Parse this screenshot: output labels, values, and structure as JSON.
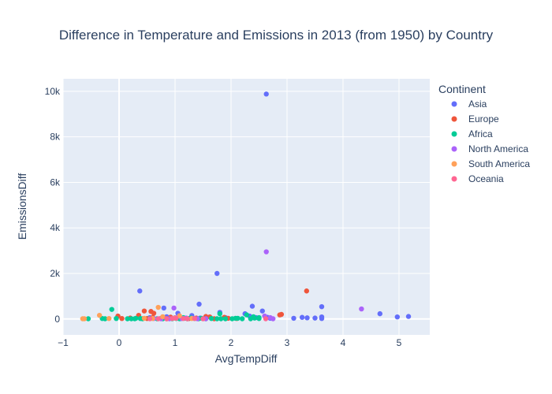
{
  "chart_data": {
    "type": "scatter",
    "title": "Difference in Temperature and Emissions in 2013 (from 1950) by Country",
    "xlabel": "AvgTempDiff",
    "ylabel": "EmissionsDiff",
    "xlim": [
      -1,
      5.55
    ],
    "ylim": [
      -700,
      10550
    ],
    "x_ticks": [
      -1,
      0,
      1,
      2,
      3,
      4,
      5
    ],
    "x_tick_labels": [
      "−1",
      "0",
      "1",
      "2",
      "3",
      "4",
      "5"
    ],
    "y_ticks": [
      0,
      2000,
      4000,
      6000,
      8000,
      10000
    ],
    "y_tick_labels": [
      "0",
      "2k",
      "4k",
      "6k",
      "8k",
      "10k"
    ],
    "grid": true,
    "legend_title": "Continent",
    "legend_position": "right",
    "series": [
      {
        "name": "Asia",
        "color": "#636efa",
        "points": [
          [
            2.63,
            9880
          ],
          [
            1.75,
            2000
          ],
          [
            0.37,
            1230
          ],
          [
            1.43,
            650
          ],
          [
            2.38,
            560
          ],
          [
            3.62,
            540
          ],
          [
            0.8,
            480
          ],
          [
            2.56,
            350
          ],
          [
            1.8,
            290
          ],
          [
            2.25,
            230
          ],
          [
            4.66,
            230
          ],
          [
            1.05,
            250
          ],
          [
            5.17,
            110
          ],
          [
            4.97,
            90
          ],
          [
            3.27,
            70
          ],
          [
            3.36,
            50
          ],
          [
            3.5,
            40
          ],
          [
            3.12,
            30
          ],
          [
            3.62,
            20
          ],
          [
            3.62,
            90
          ],
          [
            2.45,
            60
          ],
          [
            2.33,
            130
          ],
          [
            1.3,
            150
          ],
          [
            1.9,
            60
          ],
          [
            0.85,
            100
          ],
          [
            2.65,
            70
          ],
          [
            2.7,
            30
          ],
          [
            1.45,
            40
          ],
          [
            0.55,
            60
          ],
          [
            1.1,
            20
          ]
        ]
      },
      {
        "name": "Europe",
        "color": "#ef553b",
        "points": [
          [
            3.35,
            1230
          ],
          [
            0.45,
            350
          ],
          [
            0.57,
            330
          ],
          [
            0.62,
            250
          ],
          [
            2.9,
            200
          ],
          [
            2.87,
            180
          ],
          [
            0.35,
            160
          ],
          [
            -0.02,
            130
          ],
          [
            1.55,
            110
          ],
          [
            1.62,
            90
          ],
          [
            0.92,
            80
          ],
          [
            1.88,
            70
          ],
          [
            0.6,
            60
          ],
          [
            1.1,
            50
          ],
          [
            0.2,
            40
          ],
          [
            1.38,
            40
          ],
          [
            0.75,
            30
          ],
          [
            1.95,
            30
          ],
          [
            0.5,
            20
          ],
          [
            0.05,
            20
          ],
          [
            2.1,
            20
          ],
          [
            1.25,
            20
          ],
          [
            0.85,
            10
          ],
          [
            1.7,
            10
          ]
        ]
      },
      {
        "name": "Africa",
        "color": "#00cc96",
        "points": [
          [
            -0.13,
            420
          ],
          [
            2.28,
            180
          ],
          [
            1.8,
            230
          ],
          [
            2.4,
            100
          ],
          [
            2.5,
            60
          ],
          [
            2.08,
            30
          ],
          [
            -0.55,
            10
          ],
          [
            -0.25,
            10
          ],
          [
            -0.3,
            20
          ],
          [
            -0.05,
            20
          ],
          [
            0.15,
            10
          ],
          [
            0.22,
            10
          ],
          [
            0.3,
            30
          ],
          [
            0.38,
            20
          ],
          [
            0.42,
            10
          ],
          [
            0.55,
            20
          ],
          [
            0.68,
            10
          ],
          [
            0.78,
            10
          ],
          [
            0.95,
            10
          ],
          [
            1.02,
            20
          ],
          [
            1.08,
            10
          ],
          [
            1.18,
            30
          ],
          [
            1.22,
            10
          ],
          [
            1.35,
            20
          ],
          [
            1.42,
            10
          ],
          [
            1.55,
            10
          ],
          [
            1.65,
            20
          ],
          [
            1.75,
            10
          ],
          [
            1.82,
            10
          ],
          [
            1.9,
            10
          ],
          [
            2.02,
            10
          ],
          [
            2.12,
            30
          ],
          [
            2.2,
            10
          ],
          [
            2.35,
            10
          ],
          [
            2.42,
            40
          ],
          [
            2.5,
            20
          ],
          [
            1.15,
            60
          ],
          [
            1.28,
            50
          ],
          [
            1.48,
            30
          ],
          [
            0.28,
            10
          ]
        ]
      },
      {
        "name": "North America",
        "color": "#ab63fa",
        "points": [
          [
            2.63,
            2950
          ],
          [
            4.33,
            440
          ],
          [
            0.98,
            480
          ],
          [
            2.6,
            130
          ],
          [
            2.7,
            60
          ],
          [
            1.0,
            60
          ],
          [
            1.3,
            30
          ],
          [
            1.12,
            20
          ],
          [
            0.75,
            10
          ],
          [
            0.9,
            10
          ],
          [
            1.4,
            10
          ],
          [
            1.55,
            10
          ],
          [
            2.75,
            10
          ],
          [
            0.62,
            20
          ],
          [
            1.2,
            40
          ]
        ]
      },
      {
        "name": "South America",
        "color": "#ffa15a",
        "points": [
          [
            -0.62,
            10
          ],
          [
            -0.65,
            10
          ],
          [
            -0.35,
            160
          ],
          [
            0.7,
            510
          ],
          [
            0.78,
            100
          ],
          [
            1.08,
            140
          ],
          [
            -0.18,
            20
          ],
          [
            0.45,
            30
          ],
          [
            0.6,
            20
          ],
          [
            1.0,
            40
          ],
          [
            1.3,
            20
          ]
        ]
      },
      {
        "name": "Oceania",
        "color": "#ff6692",
        "points": [
          [
            1.02,
            30
          ],
          [
            1.15,
            20
          ],
          [
            0.85,
            10
          ],
          [
            0.55,
            10
          ],
          [
            1.35,
            20
          ],
          [
            1.5,
            10
          ],
          [
            0.7,
            10
          ],
          [
            1.22,
            10
          ],
          [
            0.95,
            20
          ],
          [
            2.62,
            10
          ]
        ]
      }
    ]
  }
}
